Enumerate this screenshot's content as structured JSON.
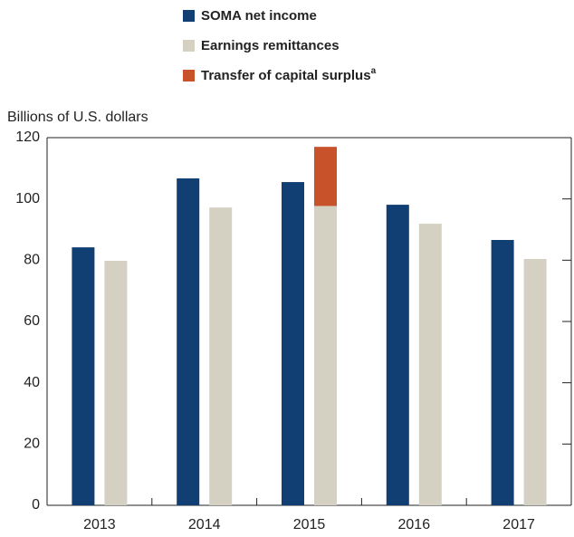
{
  "chart_data": {
    "type": "bar",
    "y_label": "Billions of U.S. dollars",
    "categories": [
      "2013",
      "2014",
      "2015",
      "2016",
      "2017"
    ],
    "series": [
      {
        "name": "SOMA net income",
        "color": "#123f73",
        "values": [
          84.2,
          106.7,
          105.5,
          98.1,
          86.6
        ]
      },
      {
        "name": "Earnings remittances",
        "color": "#d4d1c2",
        "values": [
          79.8,
          97.2,
          97.7,
          91.9,
          80.4
        ]
      },
      {
        "name": "Transfer of capital surplus",
        "footnote_marker": "a",
        "color": "#c8532b",
        "values": [
          null,
          null,
          19.3,
          null,
          null
        ],
        "stack_on": 1
      }
    ],
    "ylim": [
      0,
      120
    ],
    "yticks": [
      0,
      20,
      40,
      60,
      80,
      100,
      120
    ]
  }
}
